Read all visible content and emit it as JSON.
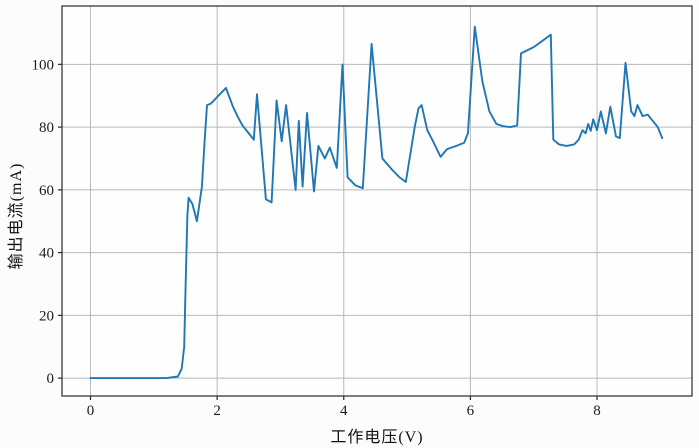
{
  "figure": {
    "background": "#fcfcfc"
  },
  "chart_data": {
    "type": "line",
    "title": "",
    "xlabel": "工作电压(V)",
    "ylabel": "输出电流(mA)",
    "legend": null,
    "grid": true,
    "line_color": "#1f77b4",
    "line_width": 1.9,
    "grid_color": "#b9b9b9",
    "frame_color": "#2a2a2a",
    "tick_text_color": "#1c1c1c",
    "xlim": [
      -0.45,
      9.5
    ],
    "ylim": [
      -5.7,
      118.6
    ],
    "x_ticks": [
      0,
      2,
      4,
      6,
      8
    ],
    "y_ticks": [
      0,
      20,
      40,
      60,
      80,
      100
    ],
    "x": [
      0,
      0.3,
      0.6,
      0.9,
      1.2,
      1.38,
      1.44,
      1.48,
      1.5,
      1.53,
      1.55,
      1.61,
      1.68,
      1.76,
      1.8,
      1.84,
      1.9,
      1.95,
      2.02,
      2.14,
      2.24,
      2.32,
      2.4,
      2.52,
      2.58,
      2.63,
      2.77,
      2.86,
      2.94,
      3.02,
      3.09,
      3.24,
      3.29,
      3.35,
      3.42,
      3.53,
      3.6,
      3.7,
      3.78,
      3.89,
      3.98,
      4.06,
      4.18,
      4.3,
      4.44,
      4.61,
      4.76,
      4.88,
      4.98,
      5.12,
      5.18,
      5.23,
      5.32,
      5.41,
      5.53,
      5.63,
      5.78,
      5.9,
      5.96,
      6.07,
      6.19,
      6.3,
      6.41,
      6.52,
      6.63,
      6.74,
      6.8,
      7.0,
      7.17,
      7.27,
      7.31,
      7.4,
      7.52,
      7.64,
      7.71,
      7.77,
      7.82,
      7.86,
      7.9,
      7.94,
      8.0,
      8.06,
      8.14,
      8.21,
      8.3,
      8.36,
      8.45,
      8.54,
      8.59,
      8.64,
      8.72,
      8.8,
      8.88,
      8.96,
      9.03
    ],
    "y": [
      0,
      0,
      0,
      0,
      0,
      0.5,
      3,
      10,
      28,
      52,
      57.5,
      55.5,
      50,
      61,
      75,
      87,
      87.5,
      88.5,
      90,
      92.5,
      87,
      83.5,
      80.5,
      77.5,
      76,
      90.5,
      57,
      56,
      88.5,
      75.5,
      87,
      60,
      82,
      61,
      84.5,
      59.5,
      74,
      70,
      73.5,
      67,
      100,
      64,
      61.5,
      60.5,
      106.5,
      70,
      66.5,
      64,
      62.5,
      80,
      86,
      87,
      79,
      75.5,
      70.5,
      73,
      74,
      75,
      78,
      112,
      94.5,
      85,
      81,
      80.3,
      80,
      80.5,
      103.5,
      105.5,
      108,
      109.5,
      76,
      74.5,
      74,
      74.5,
      76,
      79,
      78,
      81,
      78.8,
      82.5,
      79,
      85,
      78,
      86.5,
      77,
      76.5,
      100.5,
      85,
      83.5,
      87,
      83.5,
      84,
      82,
      80,
      76.5
    ]
  }
}
